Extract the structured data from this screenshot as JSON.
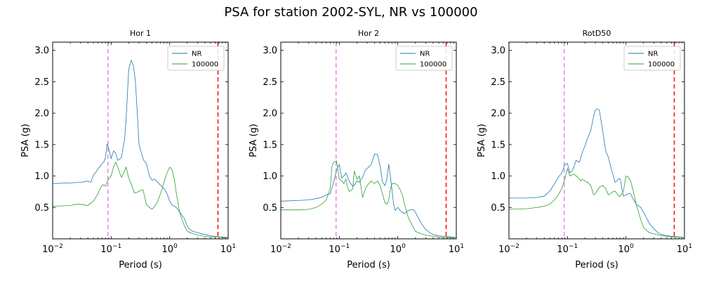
{
  "figure_title": "PSA for station 2002-SYL, NR vs 100000",
  "colors": {
    "nr": "#1f77b4",
    "sim": "#2ca02c",
    "vline_low": "#ee82ee",
    "vline_high": "#ff0000"
  },
  "chart_data": [
    {
      "type": "line",
      "title": "Hor 1",
      "xlabel": "Period (s)",
      "ylabel": "PSA (g)",
      "xscale": "log",
      "xlim": [
        0.01,
        10
      ],
      "ylim": [
        0.0,
        3.13
      ],
      "xticks": [
        {
          "value": 0.01,
          "label": "10−2"
        },
        {
          "value": 0.1,
          "label": "10−1"
        },
        {
          "value": 1,
          "label": "100"
        },
        {
          "value": 10,
          "label": "101"
        }
      ],
      "yticks": [
        "0.5",
        "1.0",
        "1.5",
        "2.0",
        "2.5",
        "3.0"
      ],
      "legend": {
        "location": "upper right",
        "entries": [
          "NR",
          "100000"
        ]
      },
      "vlines": [
        {
          "x": 0.088,
          "color": "#ee82ee"
        },
        {
          "x": 6.7,
          "color": "#ff0000"
        }
      ],
      "series": [
        {
          "name": "NR",
          "x": [
            0.01,
            0.02,
            0.03,
            0.04,
            0.045,
            0.05,
            0.055,
            0.06,
            0.065,
            0.07,
            0.075,
            0.08,
            0.085,
            0.09,
            0.1,
            0.11,
            0.12,
            0.13,
            0.14,
            0.15,
            0.16,
            0.17,
            0.18,
            0.2,
            0.22,
            0.24,
            0.26,
            0.28,
            0.3,
            0.32,
            0.34,
            0.36,
            0.4,
            0.45,
            0.5,
            0.55,
            0.6,
            0.7,
            0.8,
            0.9,
            1.0,
            1.1,
            1.2,
            1.3,
            1.5,
            1.8,
            2.0,
            2.2,
            2.5,
            3.0,
            3.5,
            4.0,
            5.0,
            6.0,
            7.0,
            8.0,
            10.0
          ],
          "y": [
            0.88,
            0.89,
            0.9,
            0.92,
            0.9,
            1.02,
            1.06,
            1.12,
            1.15,
            1.2,
            1.22,
            1.3,
            1.51,
            1.45,
            1.28,
            1.4,
            1.36,
            1.25,
            1.27,
            1.3,
            1.45,
            1.58,
            1.9,
            2.7,
            2.84,
            2.76,
            2.5,
            2.0,
            1.5,
            1.4,
            1.32,
            1.25,
            1.2,
            1.0,
            0.93,
            0.95,
            0.92,
            0.85,
            0.8,
            0.72,
            0.6,
            0.54,
            0.52,
            0.5,
            0.42,
            0.32,
            0.2,
            0.15,
            0.12,
            0.1,
            0.08,
            0.07,
            0.05,
            0.04,
            0.03,
            0.03,
            0.02
          ]
        },
        {
          "name": "100000",
          "x": [
            0.01,
            0.02,
            0.025,
            0.03,
            0.035,
            0.04,
            0.05,
            0.06,
            0.065,
            0.07,
            0.075,
            0.08,
            0.09,
            0.1,
            0.11,
            0.12,
            0.13,
            0.14,
            0.15,
            0.16,
            0.17,
            0.18,
            0.2,
            0.22,
            0.25,
            0.28,
            0.3,
            0.35,
            0.4,
            0.45,
            0.5,
            0.6,
            0.7,
            0.8,
            0.9,
            1.0,
            1.1,
            1.2,
            1.3,
            1.5,
            1.8,
            2.0,
            2.5,
            3.0,
            4.0,
            5.0,
            6.0,
            7.0,
            8.0,
            10.0
          ],
          "y": [
            0.52,
            0.53,
            0.55,
            0.55,
            0.54,
            0.53,
            0.6,
            0.72,
            0.8,
            0.85,
            0.86,
            0.84,
            0.95,
            1.0,
            1.15,
            1.22,
            1.14,
            1.05,
            0.98,
            1.03,
            1.08,
            1.14,
            0.97,
            0.87,
            0.73,
            0.74,
            0.76,
            0.78,
            0.55,
            0.5,
            0.47,
            0.56,
            0.72,
            0.9,
            1.05,
            1.14,
            1.1,
            0.95,
            0.72,
            0.4,
            0.2,
            0.12,
            0.08,
            0.06,
            0.04,
            0.03,
            0.03,
            0.03,
            0.02,
            0.02
          ]
        }
      ]
    },
    {
      "type": "line",
      "title": "Hor 2",
      "xlabel": "Period (s)",
      "ylabel": "PSA (g)",
      "xscale": "log",
      "xlim": [
        0.01,
        10
      ],
      "ylim": [
        0.0,
        3.13
      ],
      "xticks": [
        {
          "value": 0.01,
          "label": "10−2"
        },
        {
          "value": 0.1,
          "label": "10−1"
        },
        {
          "value": 1,
          "label": "100"
        },
        {
          "value": 10,
          "label": "101"
        }
      ],
      "yticks": [
        "0.5",
        "1.0",
        "1.5",
        "2.0",
        "2.5",
        "3.0"
      ],
      "legend": {
        "location": "upper right",
        "entries": [
          "NR",
          "100000"
        ]
      },
      "vlines": [
        {
          "x": 0.088,
          "color": "#ee82ee"
        },
        {
          "x": 6.7,
          "color": "#ff0000"
        }
      ],
      "series": [
        {
          "name": "NR",
          "x": [
            0.01,
            0.02,
            0.03,
            0.04,
            0.05,
            0.06,
            0.07,
            0.08,
            0.09,
            0.1,
            0.11,
            0.12,
            0.13,
            0.14,
            0.15,
            0.17,
            0.18,
            0.2,
            0.22,
            0.25,
            0.28,
            0.3,
            0.35,
            0.4,
            0.45,
            0.5,
            0.55,
            0.6,
            0.65,
            0.7,
            0.75,
            0.8,
            0.85,
            0.9,
            1.0,
            1.1,
            1.2,
            1.3,
            1.5,
            1.8,
            2.0,
            2.2,
            2.5,
            3.0,
            3.5,
            4.0,
            5.0,
            6.0,
            8.0,
            10.0
          ],
          "y": [
            0.6,
            0.61,
            0.62,
            0.64,
            0.66,
            0.7,
            0.72,
            0.9,
            1.1,
            1.18,
            0.97,
            1.0,
            1.05,
            0.98,
            0.9,
            0.84,
            0.85,
            0.92,
            0.9,
            0.98,
            1.1,
            1.12,
            1.18,
            1.35,
            1.34,
            1.15,
            0.9,
            0.85,
            0.95,
            1.19,
            0.98,
            0.75,
            0.55,
            0.45,
            0.5,
            0.45,
            0.42,
            0.4,
            0.45,
            0.47,
            0.42,
            0.35,
            0.25,
            0.15,
            0.1,
            0.07,
            0.05,
            0.04,
            0.03,
            0.02
          ]
        },
        {
          "name": "100000",
          "x": [
            0.01,
            0.02,
            0.03,
            0.04,
            0.05,
            0.06,
            0.065,
            0.07,
            0.075,
            0.08,
            0.085,
            0.09,
            0.1,
            0.11,
            0.12,
            0.13,
            0.14,
            0.15,
            0.17,
            0.18,
            0.2,
            0.22,
            0.25,
            0.28,
            0.3,
            0.35,
            0.4,
            0.45,
            0.5,
            0.6,
            0.65,
            0.7,
            0.75,
            0.8,
            0.9,
            1.0,
            1.1,
            1.2,
            1.3,
            1.5,
            1.8,
            2.0,
            2.5,
            3.0,
            4.0,
            5.0,
            6.0,
            8.0,
            10.0
          ],
          "y": [
            0.46,
            0.46,
            0.47,
            0.5,
            0.55,
            0.62,
            0.72,
            0.8,
            1.15,
            1.22,
            1.23,
            1.24,
            0.95,
            0.92,
            0.88,
            0.95,
            0.8,
            0.75,
            0.8,
            1.08,
            0.95,
            1.0,
            0.66,
            0.8,
            0.85,
            0.92,
            0.88,
            0.92,
            0.85,
            0.58,
            0.55,
            0.62,
            0.8,
            0.88,
            0.88,
            0.85,
            0.78,
            0.7,
            0.55,
            0.35,
            0.2,
            0.12,
            0.08,
            0.06,
            0.04,
            0.03,
            0.02,
            0.02,
            0.02
          ]
        }
      ]
    },
    {
      "type": "line",
      "title": "RotD50",
      "xlabel": "Period (s)",
      "ylabel": "PSA (g)",
      "xscale": "log",
      "xlim": [
        0.01,
        10
      ],
      "ylim": [
        0.0,
        3.13
      ],
      "xticks": [
        {
          "value": 0.01,
          "label": "10−2"
        },
        {
          "value": 0.1,
          "label": "10−1"
        },
        {
          "value": 1,
          "label": "100"
        },
        {
          "value": 10,
          "label": "101"
        }
      ],
      "yticks": [
        "0.5",
        "1.0",
        "1.5",
        "2.0",
        "2.5",
        "3.0"
      ],
      "legend": {
        "location": "upper right",
        "entries": [
          "NR",
          "100000"
        ]
      },
      "vlines": [
        {
          "x": 0.088,
          "color": "#ee82ee"
        },
        {
          "x": 6.7,
          "color": "#ff0000"
        }
      ],
      "series": [
        {
          "name": "NR",
          "x": [
            0.01,
            0.02,
            0.03,
            0.04,
            0.045,
            0.05,
            0.055,
            0.06,
            0.065,
            0.07,
            0.08,
            0.09,
            0.1,
            0.11,
            0.12,
            0.13,
            0.14,
            0.15,
            0.16,
            0.17,
            0.18,
            0.2,
            0.22,
            0.25,
            0.28,
            0.3,
            0.32,
            0.35,
            0.4,
            0.45,
            0.5,
            0.55,
            0.6,
            0.65,
            0.7,
            0.75,
            0.8,
            0.9,
            1.0,
            1.1,
            1.2,
            1.3,
            1.5,
            1.8,
            2.0,
            2.2,
            2.5,
            3.0,
            3.5,
            4.0,
            5.0,
            6.0,
            8.0,
            10.0
          ],
          "y": [
            0.65,
            0.65,
            0.66,
            0.68,
            0.72,
            0.76,
            0.82,
            0.87,
            0.93,
            0.98,
            1.05,
            1.18,
            1.2,
            1.05,
            1.08,
            1.15,
            1.25,
            1.23,
            1.22,
            1.3,
            1.38,
            1.48,
            1.6,
            1.72,
            1.95,
            2.05,
            2.07,
            2.05,
            1.72,
            1.4,
            1.3,
            1.15,
            1.02,
            0.9,
            0.92,
            0.96,
            0.95,
            0.68,
            0.7,
            0.72,
            0.72,
            0.65,
            0.55,
            0.5,
            0.42,
            0.35,
            0.25,
            0.16,
            0.1,
            0.07,
            0.05,
            0.04,
            0.03,
            0.02
          ]
        },
        {
          "name": "100000",
          "x": [
            0.01,
            0.02,
            0.03,
            0.04,
            0.05,
            0.06,
            0.07,
            0.08,
            0.09,
            0.1,
            0.11,
            0.12,
            0.13,
            0.15,
            0.17,
            0.18,
            0.2,
            0.22,
            0.25,
            0.28,
            0.3,
            0.35,
            0.4,
            0.45,
            0.5,
            0.55,
            0.6,
            0.65,
            0.7,
            0.75,
            0.8,
            0.9,
            1.0,
            1.1,
            1.2,
            1.3,
            1.5,
            1.8,
            2.0,
            2.5,
            3.0,
            4.0,
            5.0,
            6.0,
            8.0,
            10.0
          ],
          "y": [
            0.47,
            0.48,
            0.5,
            0.52,
            0.55,
            0.62,
            0.7,
            0.8,
            0.95,
            1.12,
            1.0,
            1.02,
            1.03,
            0.98,
            0.92,
            0.95,
            0.92,
            0.9,
            0.85,
            0.7,
            0.72,
            0.82,
            0.85,
            0.8,
            0.7,
            0.72,
            0.75,
            0.76,
            0.72,
            0.68,
            0.68,
            0.75,
            1.0,
            0.98,
            0.92,
            0.8,
            0.55,
            0.3,
            0.18,
            0.1,
            0.08,
            0.05,
            0.04,
            0.03,
            0.03,
            0.02
          ]
        }
      ]
    }
  ]
}
